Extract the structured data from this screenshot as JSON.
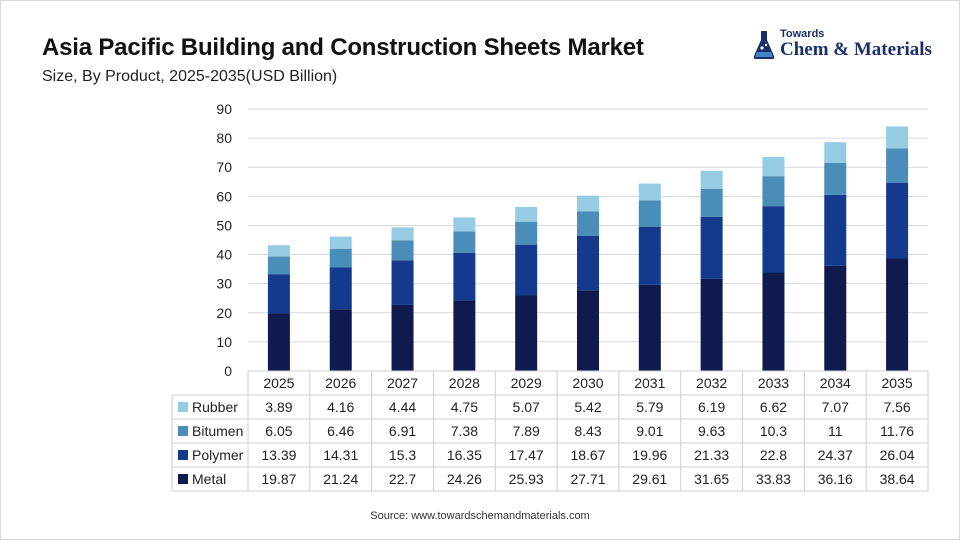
{
  "header": {
    "title": "Asia Pacific Building and Construction Sheets Market",
    "subtitle": "Size, By Product, 2025-2035(USD Billion)"
  },
  "logo": {
    "small_text": "Towards",
    "brand_text": "Chem & Materials"
  },
  "footer": {
    "source": "Source: www.towardschemandmaterials.com"
  },
  "chart_data": {
    "type": "bar",
    "stacked": true,
    "categories": [
      "2025",
      "2026",
      "2027",
      "2028",
      "2029",
      "2030",
      "2031",
      "2032",
      "2033",
      "2034",
      "2035"
    ],
    "ylim": [
      0,
      90
    ],
    "yticks": [
      0,
      10,
      20,
      30,
      40,
      50,
      60,
      70,
      80,
      90
    ],
    "grid": true,
    "data_table": true,
    "series": [
      {
        "name": "Metal",
        "color": "#0f1a4f",
        "values": [
          19.87,
          21.24,
          22.7,
          24.26,
          25.93,
          27.71,
          29.61,
          31.65,
          33.83,
          36.16,
          38.64
        ]
      },
      {
        "name": "Polymer",
        "color": "#133a8c",
        "values": [
          13.39,
          14.31,
          15.3,
          16.35,
          17.47,
          18.67,
          19.96,
          21.33,
          22.8,
          24.37,
          26.04
        ]
      },
      {
        "name": "Bitumen",
        "color": "#4a8db8",
        "values": [
          6.05,
          6.46,
          6.91,
          7.38,
          7.89,
          8.43,
          9.01,
          9.63,
          10.3,
          11,
          11.76
        ]
      },
      {
        "name": "Rubber",
        "color": "#95cce3",
        "values": [
          3.89,
          4.16,
          4.44,
          4.75,
          5.07,
          5.42,
          5.79,
          6.19,
          6.62,
          7.07,
          7.56
        ]
      }
    ],
    "table_rows": [
      {
        "name": "Rubber",
        "color": "#95cce3",
        "values": [
          "3.89",
          "4.16",
          "4.44",
          "4.75",
          "5.07",
          "5.42",
          "5.79",
          "6.19",
          "6.62",
          "7.07",
          "7.56"
        ]
      },
      {
        "name": "Bitumen",
        "color": "#4a8db8",
        "values": [
          "6.05",
          "6.46",
          "6.91",
          "7.38",
          "7.89",
          "8.43",
          "9.01",
          "9.63",
          "10.3",
          "11",
          "11.76"
        ]
      },
      {
        "name": "Polymer",
        "color": "#133a8c",
        "values": [
          "13.39",
          "14.31",
          "15.3",
          "16.35",
          "17.47",
          "18.67",
          "19.96",
          "21.33",
          "22.8",
          "24.37",
          "26.04"
        ]
      },
      {
        "name": "Metal",
        "color": "#0f1a4f",
        "values": [
          "19.87",
          "21.24",
          "22.7",
          "24.26",
          "25.93",
          "27.71",
          "29.61",
          "31.65",
          "33.83",
          "36.16",
          "38.64"
        ]
      }
    ]
  }
}
